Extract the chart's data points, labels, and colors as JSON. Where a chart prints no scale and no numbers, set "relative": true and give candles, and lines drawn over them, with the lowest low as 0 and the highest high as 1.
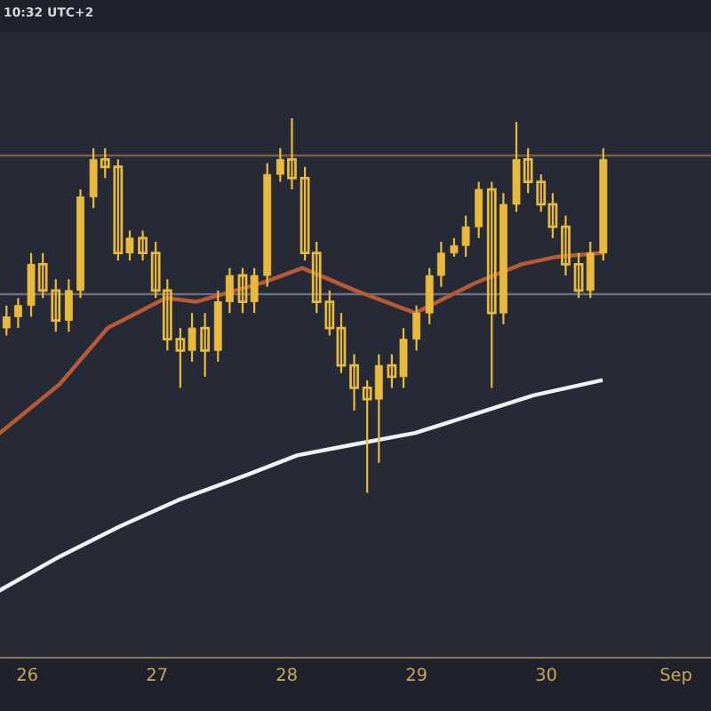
{
  "chart_data": {
    "type": "candlestick",
    "relative": true,
    "color": "#e9b93c",
    "x": [
      25.84,
      25.93,
      26.03,
      26.12,
      26.22,
      26.32,
      26.41,
      26.51,
      26.6,
      26.7,
      26.79,
      26.89,
      26.99,
      27.08,
      27.18,
      27.27,
      27.37,
      27.47,
      27.56,
      27.66,
      27.75,
      27.85,
      27.95,
      28.04,
      28.14,
      28.23,
      28.33,
      28.42,
      28.52,
      28.62,
      28.71,
      28.81,
      28.9,
      29.0,
      29.1,
      29.19,
      29.29,
      29.38,
      29.48,
      29.58,
      29.67,
      29.77,
      29.86,
      29.96,
      30.05,
      30.15,
      30.25,
      30.34,
      30.44
    ],
    "ohlc": [
      [
        0.44,
        0.5,
        0.42,
        0.47
      ],
      [
        0.47,
        0.52,
        0.44,
        0.5
      ],
      [
        0.5,
        0.64,
        0.47,
        0.61
      ],
      [
        0.61,
        0.64,
        0.52,
        0.54
      ],
      [
        0.54,
        0.57,
        0.43,
        0.46
      ],
      [
        0.46,
        0.57,
        0.43,
        0.54
      ],
      [
        0.54,
        0.81,
        0.52,
        0.79
      ],
      [
        0.79,
        0.92,
        0.76,
        0.89
      ],
      [
        0.89,
        0.92,
        0.84,
        0.87
      ],
      [
        0.87,
        0.89,
        0.62,
        0.64
      ],
      [
        0.64,
        0.7,
        0.62,
        0.68
      ],
      [
        0.68,
        0.7,
        0.62,
        0.64
      ],
      [
        0.64,
        0.67,
        0.52,
        0.54
      ],
      [
        0.54,
        0.57,
        0.38,
        0.41
      ],
      [
        0.41,
        0.44,
        0.28,
        0.38
      ],
      [
        0.38,
        0.48,
        0.35,
        0.44
      ],
      [
        0.44,
        0.48,
        0.31,
        0.38
      ],
      [
        0.38,
        0.54,
        0.35,
        0.51
      ],
      [
        0.51,
        0.6,
        0.48,
        0.58
      ],
      [
        0.58,
        0.6,
        0.48,
        0.51
      ],
      [
        0.51,
        0.6,
        0.48,
        0.58
      ],
      [
        0.58,
        0.88,
        0.55,
        0.85
      ],
      [
        0.85,
        0.92,
        0.83,
        0.89
      ],
      [
        0.89,
        1.0,
        0.81,
        0.84
      ],
      [
        0.84,
        0.87,
        0.62,
        0.64
      ],
      [
        0.64,
        0.67,
        0.48,
        0.51
      ],
      [
        0.51,
        0.54,
        0.42,
        0.44
      ],
      [
        0.44,
        0.48,
        0.32,
        0.34
      ],
      [
        0.34,
        0.37,
        0.22,
        0.28
      ],
      [
        0.28,
        0.3,
        0.0,
        0.25
      ],
      [
        0.25,
        0.37,
        0.08,
        0.34
      ],
      [
        0.34,
        0.37,
        0.28,
        0.31
      ],
      [
        0.31,
        0.44,
        0.28,
        0.41
      ],
      [
        0.41,
        0.5,
        0.38,
        0.48
      ],
      [
        0.48,
        0.6,
        0.45,
        0.58
      ],
      [
        0.58,
        0.67,
        0.55,
        0.64
      ],
      [
        0.64,
        0.68,
        0.63,
        0.66
      ],
      [
        0.66,
        0.74,
        0.63,
        0.71
      ],
      [
        0.71,
        0.83,
        0.68,
        0.81
      ],
      [
        0.81,
        0.83,
        0.28,
        0.48
      ],
      [
        0.48,
        0.8,
        0.45,
        0.77
      ],
      [
        0.77,
        0.99,
        0.75,
        0.89
      ],
      [
        0.89,
        0.92,
        0.8,
        0.83
      ],
      [
        0.83,
        0.85,
        0.75,
        0.77
      ],
      [
        0.77,
        0.8,
        0.68,
        0.71
      ],
      [
        0.71,
        0.74,
        0.58,
        0.61
      ],
      [
        0.61,
        0.64,
        0.52,
        0.54
      ],
      [
        0.54,
        0.67,
        0.52,
        0.64
      ],
      [
        0.64,
        0.92,
        0.62,
        0.89
      ]
    ],
    "series": [
      {
        "type": "line",
        "color": "#b85a36",
        "x": [
          25.79,
          26.25,
          26.62,
          27.07,
          27.3,
          27.81,
          28.12,
          28.53,
          28.99,
          29.45,
          29.81,
          30.08,
          30.42
        ],
        "values": [
          0.16,
          0.29,
          0.44,
          0.52,
          0.51,
          0.56,
          0.6,
          0.54,
          0.48,
          0.56,
          0.61,
          0.63,
          0.64
        ]
      },
      {
        "type": "line",
        "color": "#f2f2f5",
        "x": [
          25.79,
          26.25,
          26.71,
          27.16,
          27.71,
          28.08,
          28.53,
          28.99,
          29.45,
          29.9,
          30.42
        ],
        "values": [
          -0.26,
          -0.17,
          -0.09,
          -0.02,
          0.05,
          0.1,
          0.13,
          0.16,
          0.21,
          0.26,
          0.3
        ]
      }
    ],
    "ref_lines": [
      {
        "axis": "y",
        "value": 0.9,
        "color": "#7a5e48"
      },
      {
        "axis": "y",
        "value": 0.53,
        "color": "#6b6f7a"
      }
    ],
    "xlim": [
      25.79,
      31.27
    ],
    "xticks": [
      26,
      27,
      28,
      29,
      30,
      {
        "value": 31,
        "label": "Sep"
      }
    ],
    "annotations": [
      "10:32 UTC+2"
    ]
  }
}
